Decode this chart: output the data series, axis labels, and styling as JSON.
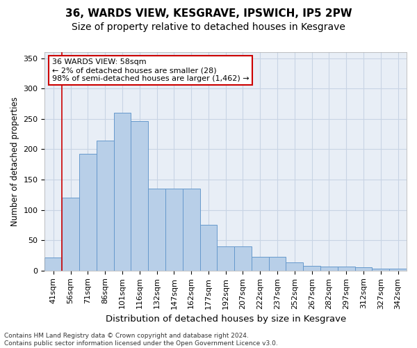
{
  "title1": "36, WARDS VIEW, KESGRAVE, IPSWICH, IP5 2PW",
  "title2": "Size of property relative to detached houses in Kesgrave",
  "xlabel": "Distribution of detached houses by size in Kesgrave",
  "ylabel": "Number of detached properties",
  "categories": [
    "41sqm",
    "56sqm",
    "71sqm",
    "86sqm",
    "101sqm",
    "116sqm",
    "132sqm",
    "147sqm",
    "162sqm",
    "177sqm",
    "192sqm",
    "207sqm",
    "222sqm",
    "237sqm",
    "252sqm",
    "267sqm",
    "282sqm",
    "297sqm",
    "312sqm",
    "327sqm",
    "342sqm"
  ],
  "values": [
    22,
    120,
    192,
    214,
    260,
    247,
    135,
    135,
    135,
    75,
    40,
    40,
    23,
    23,
    14,
    8,
    7,
    7,
    5,
    3,
    3
  ],
  "bar_color": "#b8cfe8",
  "bar_edge_color": "#6699cc",
  "grid_color": "#c8d4e4",
  "background_color": "#e8eef6",
  "vline_color": "#cc0000",
  "vline_x": 0.5,
  "annotation_text": "36 WARDS VIEW: 58sqm\n← 2% of detached houses are smaller (28)\n98% of semi-detached houses are larger (1,462) →",
  "annotation_box_facecolor": "#ffffff",
  "annotation_box_edgecolor": "#cc0000",
  "footnote": "Contains HM Land Registry data © Crown copyright and database right 2024.\nContains public sector information licensed under the Open Government Licence v3.0.",
  "ylim": [
    0,
    360
  ],
  "yticks": [
    0,
    50,
    100,
    150,
    200,
    250,
    300,
    350
  ],
  "title1_fontsize": 11,
  "title2_fontsize": 10,
  "xlabel_fontsize": 9.5,
  "ylabel_fontsize": 8.5,
  "tick_fontsize": 8,
  "annotation_fontsize": 8,
  "footnote_fontsize": 6.5
}
